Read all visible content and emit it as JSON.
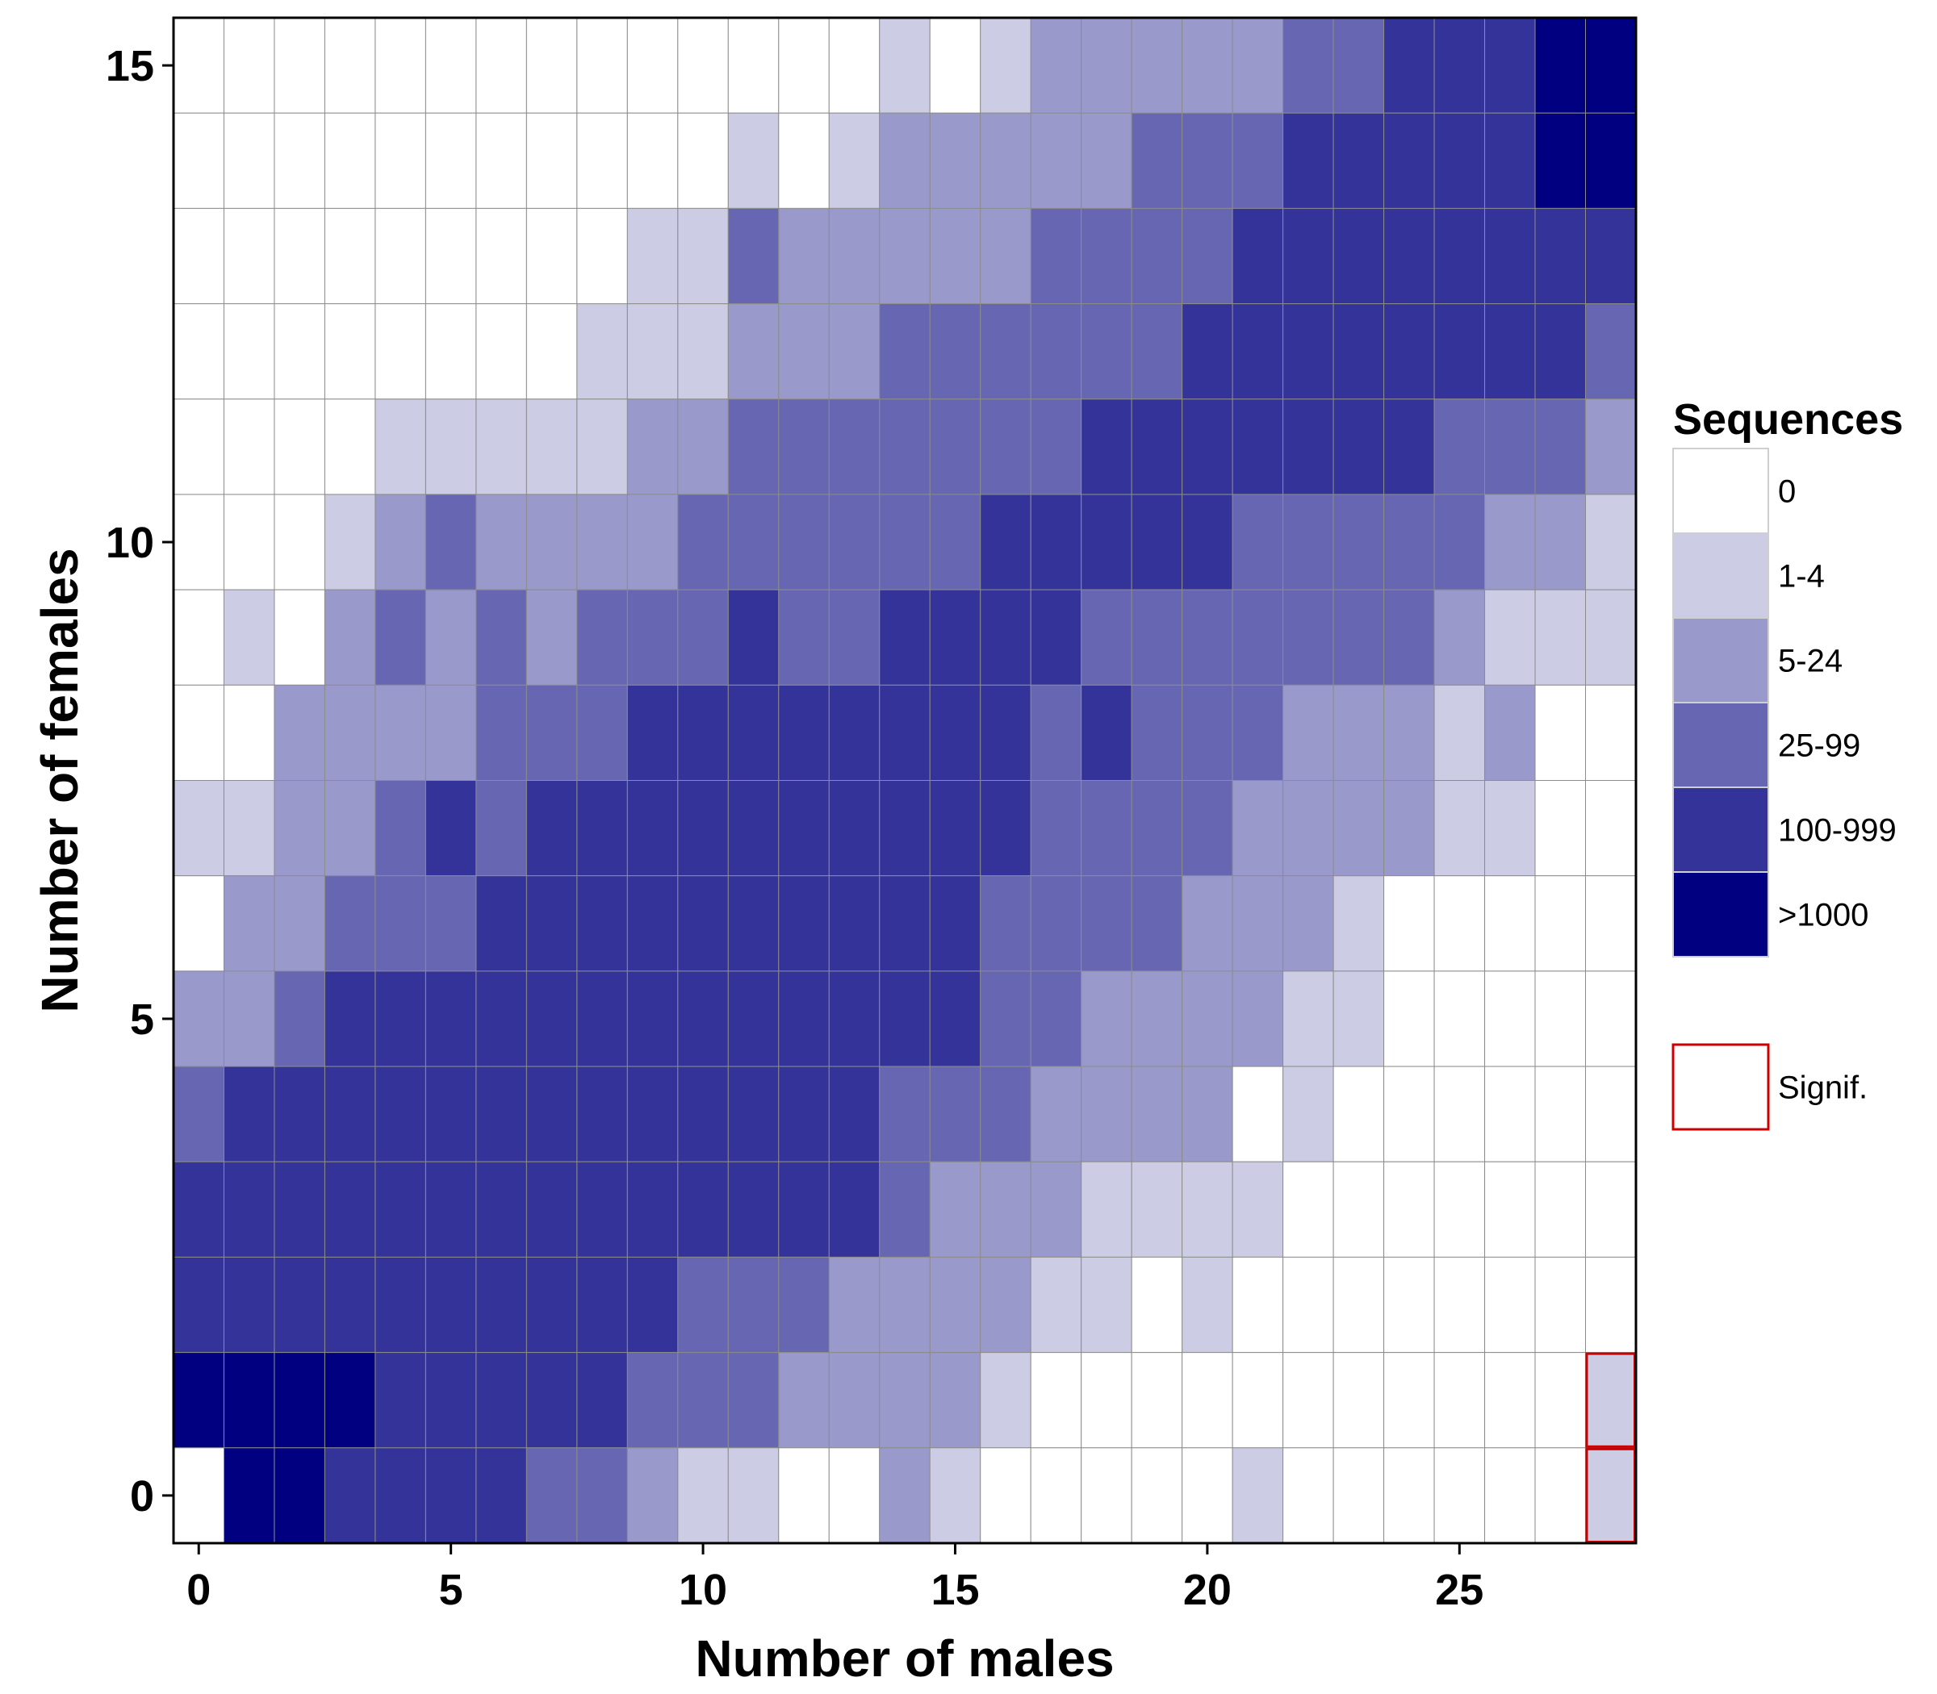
{
  "chart_data": {
    "type": "heatmap",
    "xlabel": "Number of males",
    "ylabel": "Number of females",
    "x_range": [
      0,
      28
    ],
    "y_range": [
      0,
      15
    ],
    "x_ticks": [
      0,
      5,
      10,
      15,
      20,
      25
    ],
    "y_ticks": [
      0,
      5,
      10,
      15
    ],
    "legend": {
      "title": "Sequences",
      "placement": "right",
      "categories": [
        {
          "label": "0",
          "color": "#ffffff"
        },
        {
          "label": "1-4",
          "color": "#ccccE5"
        },
        {
          "label": "5-24",
          "color": "#9999cc"
        },
        {
          "label": "25-99",
          "color": "#6666b2"
        },
        {
          "label": "100-999",
          "color": "#333399"
        },
        {
          "label": ">1000",
          "color": "#000080"
        }
      ],
      "signif_label": "Signif.",
      "signif_color": "#cc0000"
    },
    "grid_color": "#8c8c8c",
    "rows_note": "level index per cell: 0='0',1='1-4',2='5-24',3='25-99',4='100-999',5='>1000'; rows listed from females=15 down to females=0; each row lists males=0..28",
    "levels": [
      [
        0,
        0,
        0,
        0,
        0,
        0,
        0,
        0,
        0,
        0,
        0,
        0,
        0,
        0,
        1,
        0,
        1,
        2,
        2,
        2,
        2,
        2,
        3,
        3,
        4,
        4,
        4,
        5,
        5
      ],
      [
        0,
        0,
        0,
        0,
        0,
        0,
        0,
        0,
        0,
        0,
        0,
        1,
        0,
        1,
        2,
        2,
        2,
        2,
        2,
        3,
        3,
        3,
        4,
        4,
        4,
        4,
        4,
        5,
        5
      ],
      [
        0,
        0,
        0,
        0,
        0,
        0,
        0,
        0,
        0,
        1,
        1,
        3,
        2,
        2,
        2,
        2,
        2,
        3,
        3,
        3,
        3,
        4,
        4,
        4,
        4,
        4,
        4,
        4,
        4
      ],
      [
        0,
        0,
        0,
        0,
        0,
        0,
        0,
        0,
        1,
        1,
        1,
        2,
        2,
        2,
        3,
        3,
        3,
        3,
        3,
        3,
        4,
        4,
        4,
        4,
        4,
        4,
        4,
        4,
        3
      ],
      [
        0,
        0,
        0,
        0,
        1,
        1,
        1,
        1,
        1,
        2,
        2,
        3,
        3,
        3,
        3,
        3,
        3,
        3,
        4,
        4,
        4,
        4,
        4,
        4,
        4,
        3,
        3,
        3,
        2
      ],
      [
        0,
        0,
        0,
        1,
        2,
        3,
        2,
        2,
        2,
        2,
        3,
        3,
        3,
        3,
        3,
        3,
        4,
        4,
        4,
        4,
        4,
        3,
        3,
        3,
        3,
        3,
        2,
        2,
        1
      ],
      [
        0,
        1,
        0,
        2,
        3,
        2,
        3,
        2,
        3,
        3,
        3,
        4,
        3,
        3,
        4,
        4,
        4,
        4,
        3,
        3,
        3,
        3,
        3,
        3,
        3,
        2,
        1,
        1,
        1
      ],
      [
        0,
        0,
        2,
        2,
        2,
        2,
        3,
        3,
        3,
        4,
        4,
        4,
        4,
        4,
        4,
        4,
        4,
        3,
        4,
        3,
        3,
        3,
        2,
        2,
        2,
        1,
        2,
        0,
        0
      ],
      [
        1,
        1,
        2,
        2,
        3,
        4,
        3,
        4,
        4,
        4,
        4,
        4,
        4,
        4,
        4,
        4,
        4,
        3,
        3,
        3,
        3,
        2,
        2,
        2,
        2,
        1,
        1,
        0,
        0
      ],
      [
        0,
        2,
        2,
        3,
        3,
        3,
        4,
        4,
        4,
        4,
        4,
        4,
        4,
        4,
        4,
        4,
        3,
        3,
        3,
        3,
        2,
        2,
        2,
        1,
        0,
        0,
        0,
        0,
        0
      ],
      [
        2,
        2,
        3,
        4,
        4,
        4,
        4,
        4,
        4,
        4,
        4,
        4,
        4,
        4,
        4,
        4,
        3,
        3,
        2,
        2,
        2,
        2,
        1,
        1,
        0,
        0,
        0,
        0,
        0
      ],
      [
        3,
        4,
        4,
        4,
        4,
        4,
        4,
        4,
        4,
        4,
        4,
        4,
        4,
        4,
        3,
        3,
        3,
        2,
        2,
        2,
        2,
        0,
        1,
        0,
        0,
        0,
        0,
        0,
        0
      ],
      [
        4,
        4,
        4,
        4,
        4,
        4,
        4,
        4,
        4,
        4,
        4,
        4,
        4,
        4,
        3,
        2,
        2,
        2,
        1,
        1,
        1,
        1,
        0,
        0,
        0,
        0,
        0,
        0,
        0
      ],
      [
        4,
        4,
        4,
        4,
        4,
        4,
        4,
        4,
        4,
        4,
        3,
        3,
        3,
        2,
        2,
        2,
        2,
        1,
        1,
        0,
        1,
        0,
        0,
        0,
        0,
        0,
        0,
        0,
        0
      ],
      [
        5,
        5,
        5,
        5,
        4,
        4,
        4,
        4,
        4,
        3,
        3,
        3,
        2,
        2,
        2,
        2,
        1,
        0,
        0,
        0,
        0,
        0,
        0,
        0,
        0,
        0,
        0,
        0,
        1
      ],
      [
        0,
        5,
        5,
        4,
        4,
        4,
        4,
        3,
        3,
        2,
        1,
        1,
        0,
        0,
        2,
        1,
        0,
        0,
        0,
        0,
        0,
        1,
        0,
        0,
        0,
        0,
        0,
        0,
        1
      ]
    ],
    "significant_cells": [
      {
        "males": 28,
        "females": 1
      },
      {
        "males": 28,
        "females": 0
      }
    ]
  }
}
